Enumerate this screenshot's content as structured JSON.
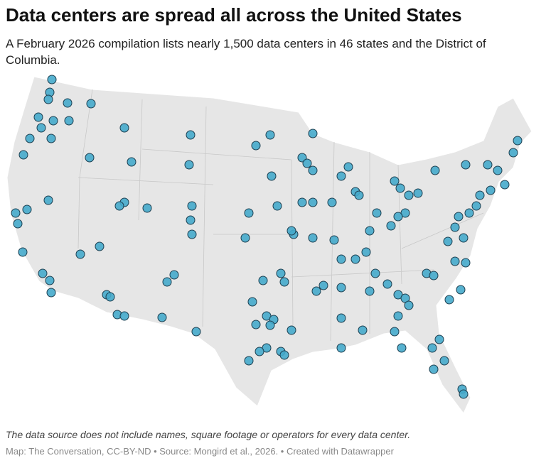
{
  "header": {
    "title": "Data centers are spread all across the United States",
    "subtitle": "A February 2026 compilation lists nearly 1,500 data centers in 46 states and the District of Columbia."
  },
  "footer": {
    "note": "The data source does not include names, square footage or operators for every data center.",
    "credit": "Map: The Conversation, CC-BY-ND • Source: Mongird et al., 2026. • Created with Datawrapper"
  }
}
